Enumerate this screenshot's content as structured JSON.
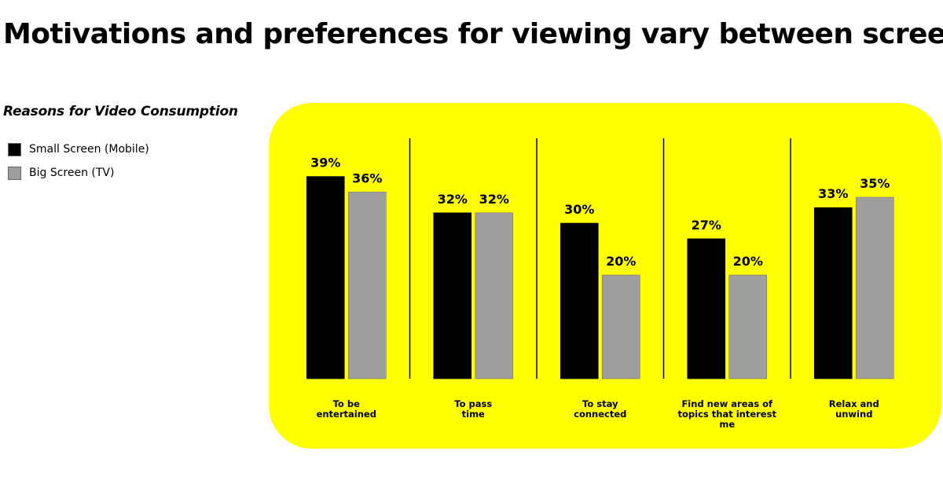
{
  "title": "Motivations and preferences for viewing vary between screens",
  "chart_data": {
    "type": "bar",
    "title": "Reasons for Video Consumption",
    "categories": [
      "To be entertained",
      "To pass time",
      "To stay connected",
      "Find new areas of topics that interest me",
      "Relax and unwind"
    ],
    "category_lines": [
      [
        "To be",
        "entertained"
      ],
      [
        "To pass",
        "time"
      ],
      [
        "To stay",
        "connected"
      ],
      [
        "Find new areas of",
        "topics that interest",
        "me"
      ],
      [
        "Relax and",
        "unwind"
      ]
    ],
    "series": [
      {
        "name": "Small Screen (Mobile)",
        "values": [
          39,
          32,
          30,
          27,
          33
        ],
        "color": "#000000"
      },
      {
        "name": "Big Screen (TV)",
        "values": [
          36,
          32,
          20,
          20,
          35
        ],
        "color": "#9e9e9e"
      }
    ],
    "value_suffix": "%",
    "ylim": [
      0,
      40
    ],
    "grid": false,
    "legend_position": "top-left",
    "background_color": "#ffff00",
    "divider_color": "#000000"
  }
}
